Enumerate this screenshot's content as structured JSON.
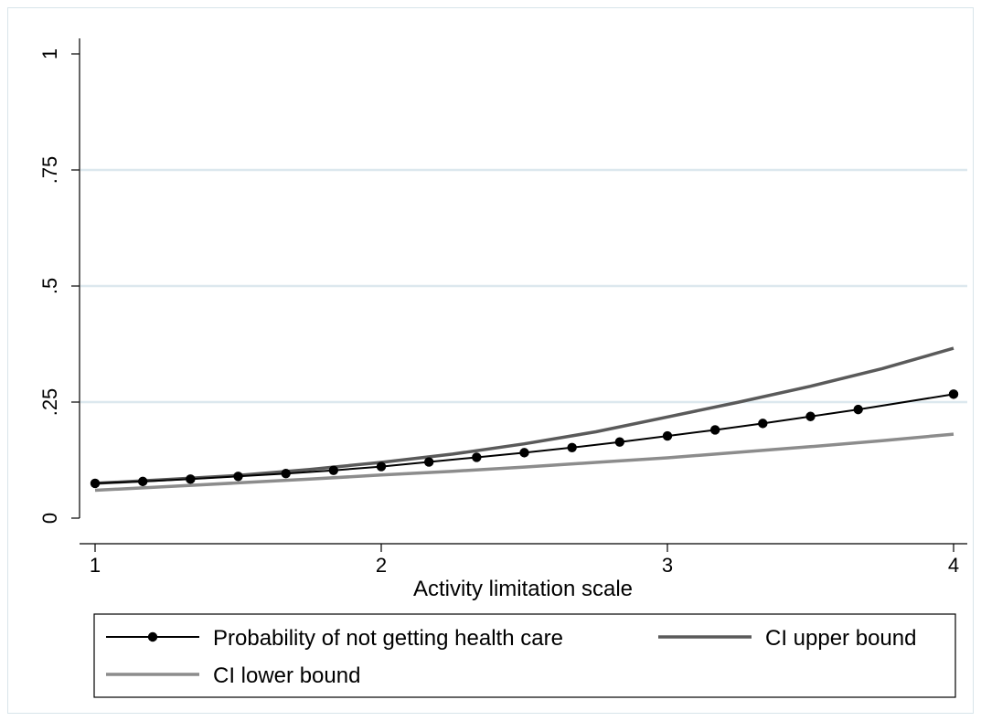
{
  "chart_data": {
    "type": "line",
    "xlabel": "Activity limitation scale",
    "ylabel": "",
    "xlim": [
      1,
      4
    ],
    "ylim": [
      0,
      1
    ],
    "x_ticks": [
      {
        "value": 1,
        "label": "1"
      },
      {
        "value": 2,
        "label": "2"
      },
      {
        "value": 3,
        "label": "3"
      },
      {
        "value": 4,
        "label": "4"
      }
    ],
    "y_ticks": [
      {
        "value": 0,
        "label": "0"
      },
      {
        "value": 0.25,
        "label": ".25"
      },
      {
        "value": 0.5,
        "label": ".5"
      },
      {
        "value": 0.75,
        "label": ".75"
      },
      {
        "value": 1,
        "label": "1"
      }
    ],
    "grid": "horizontal",
    "legend_position": "bottom",
    "series": [
      {
        "name": "Probability of not getting health care",
        "color": "#000000",
        "markers": true,
        "x": [
          1,
          1.1667,
          1.3333,
          1.5,
          1.6667,
          1.8333,
          2,
          2.1667,
          2.3333,
          2.5,
          2.6667,
          2.8333,
          3,
          3.1667,
          3.3333,
          3.5,
          3.6667,
          4
        ],
        "y": [
          0.075,
          0.079,
          0.084,
          0.09,
          0.096,
          0.103,
          0.111,
          0.121,
          0.131,
          0.141,
          0.152,
          0.164,
          0.177,
          0.19,
          0.204,
          0.219,
          0.234,
          0.267
        ]
      },
      {
        "name": "CI upper bound",
        "color": "#5a5a5a",
        "markers": false,
        "x": [
          1,
          1.25,
          1.5,
          1.75,
          2,
          2.25,
          2.5,
          2.75,
          3,
          3.25,
          3.5,
          3.75,
          4
        ],
        "y": [
          0.075,
          0.083,
          0.092,
          0.105,
          0.12,
          0.138,
          0.16,
          0.186,
          0.218,
          0.25,
          0.284,
          0.322,
          0.366
        ]
      },
      {
        "name": "CI lower bound",
        "color": "#8c8c8c",
        "markers": false,
        "x": [
          1,
          1.25,
          1.5,
          1.75,
          2,
          2.25,
          2.5,
          2.75,
          3,
          3.25,
          3.5,
          3.75,
          4
        ],
        "y": [
          0.06,
          0.068,
          0.076,
          0.084,
          0.093,
          0.101,
          0.11,
          0.12,
          0.13,
          0.142,
          0.154,
          0.167,
          0.181
        ]
      }
    ],
    "gridline_color": "#dce8ee"
  }
}
